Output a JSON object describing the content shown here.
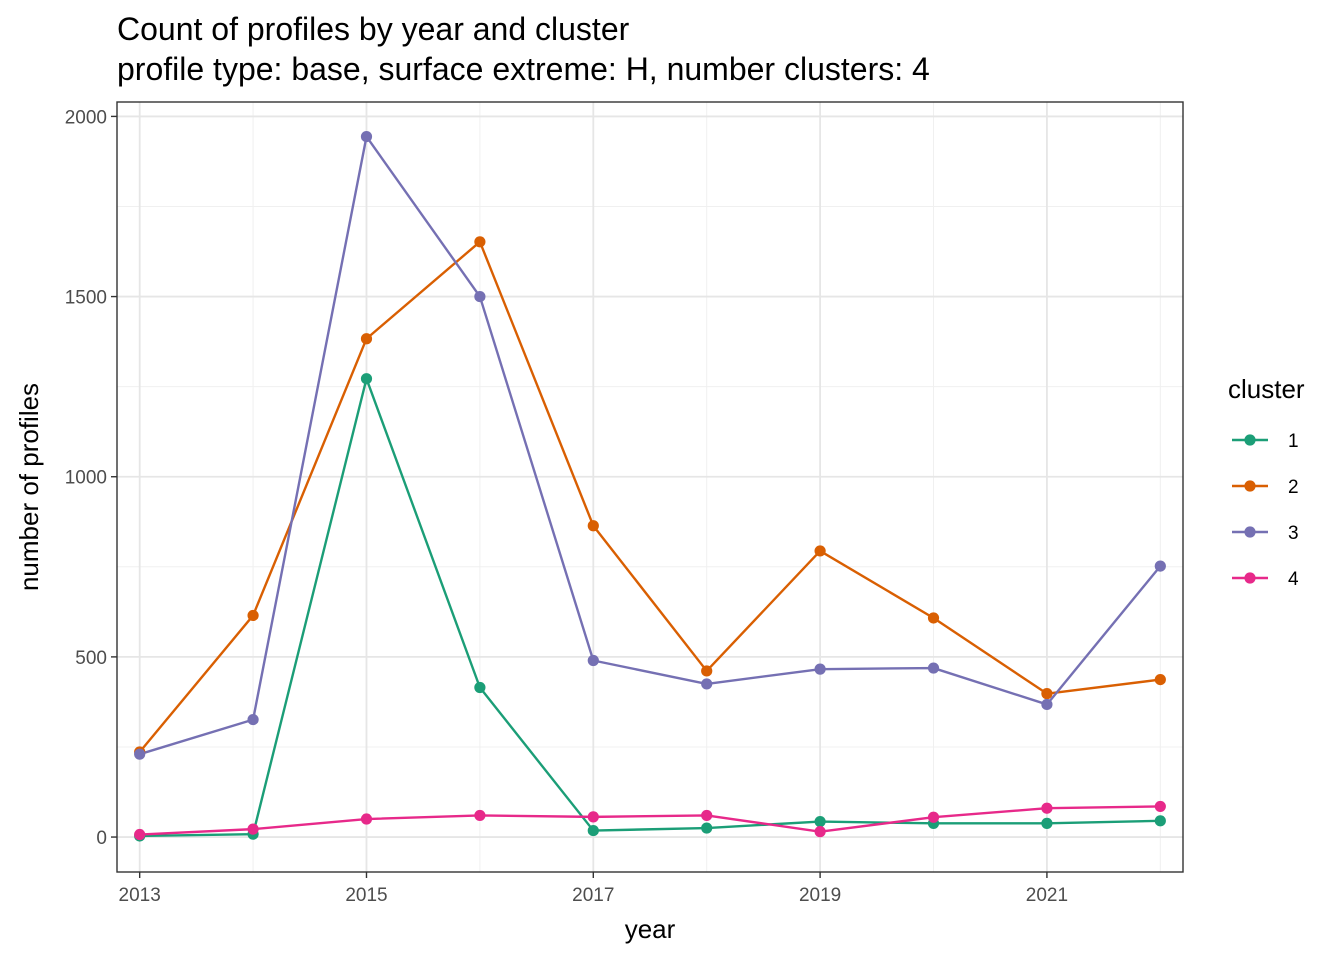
{
  "chart_data": {
    "type": "line",
    "title": "Count of profiles by year and cluster",
    "subtitle": "profile type: base, surface extreme: H, number clusters: 4",
    "xlabel": "year",
    "ylabel": "number of profiles",
    "x": [
      2013,
      2014,
      2015,
      2016,
      2017,
      2018,
      2019,
      2020,
      2021,
      2022
    ],
    "xlim": [
      2012.8,
      2022.2
    ],
    "ylim": [
      -97,
      2040
    ],
    "x_ticks": [
      2013,
      2015,
      2017,
      2019,
      2021
    ],
    "x_tick_labels": [
      "2013",
      "2015",
      "2017",
      "2019",
      "2021"
    ],
    "y_ticks": [
      0,
      500,
      1000,
      1500,
      2000
    ],
    "y_tick_labels": [
      "0",
      "500",
      "1000",
      "1500",
      "2000"
    ],
    "grid": true,
    "legend": {
      "title": "cluster",
      "position": "right"
    },
    "series": [
      {
        "name": "1",
        "color": "#1b9e77",
        "values": [
          3,
          8,
          1272,
          415,
          18,
          25,
          43,
          38,
          38,
          45
        ]
      },
      {
        "name": "2",
        "color": "#d95f02",
        "values": [
          236,
          615,
          1383,
          1652,
          864,
          461,
          794,
          608,
          398,
          437
        ]
      },
      {
        "name": "3",
        "color": "#7570b3",
        "values": [
          230,
          326,
          1944,
          1500,
          490,
          425,
          466,
          469,
          368,
          752
        ]
      },
      {
        "name": "4",
        "color": "#e7298a",
        "values": [
          7,
          22,
          50,
          60,
          56,
          60,
          15,
          55,
          80,
          85
        ]
      }
    ]
  }
}
